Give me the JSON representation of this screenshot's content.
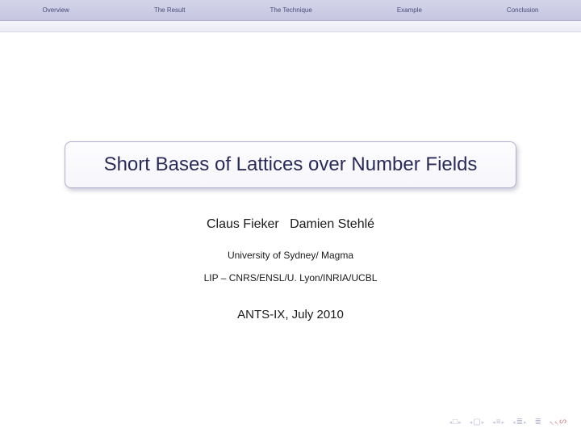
{
  "nav": {
    "items": [
      "Overview",
      "The Result",
      "The Technique",
      "Example",
      "Conclusion"
    ]
  },
  "title": "Short Bases of Lattices over Number Fields",
  "authors": "Claus Fieker   Damien Stehlé",
  "affiliation1": "University of Sydney/ Magma",
  "affiliation2": "LIP – CNRS/ENSL/U. Lyon/INRIA/UCBL",
  "conference": "ANTS-IX, July 2010",
  "colors": {
    "nav_bg_top": "#d4d4ea",
    "nav_bg_bottom": "#c5c5e0",
    "nav_text": "#4a4a7a",
    "title_border": "#b0b0ce",
    "title_text": "#2a2a5a",
    "body_text": "#1a1a1a",
    "footer_icon": "#b8b8d8",
    "footer_icon_red": "#d48a8a"
  }
}
